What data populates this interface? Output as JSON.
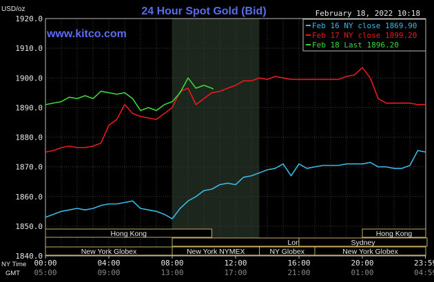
{
  "chart_data": {
    "type": "line",
    "title": "24 Hour Spot Gold (Bid)",
    "timestamp": "February 18, 2022 10:18",
    "watermark": "www.kitco.com",
    "ylabel": "USD/oz",
    "ylim": [
      1840,
      1920
    ],
    "yticks": [
      "1920.0",
      "1910.0",
      "1900.0",
      "1890.0",
      "1880.0",
      "1870.0",
      "1860.0",
      "1850.0",
      "1840.0"
    ],
    "xlim": [
      0,
      24
    ],
    "x_ticks": [
      0,
      4,
      8,
      12,
      16,
      20,
      23.98
    ],
    "x_ticks_ny": [
      "00:00",
      "04:00",
      "08:00",
      "12:00",
      "16:00",
      "20:00",
      "23:59"
    ],
    "x_ticks_gmt": [
      "05:00",
      "09:00",
      "13:00",
      "17:00",
      "21:00",
      "01:00",
      "04:59"
    ],
    "x_row_label_ny": "NY Time",
    "x_row_label_gmt": "GMT",
    "grid": true,
    "legend_position": "top-right",
    "highlight_band": [
      8,
      13.5
    ],
    "sessions": [
      {
        "label": "Hong Kong",
        "row": 0,
        "start": 0,
        "end": 10.5
      },
      {
        "label": "Hong Kong",
        "row": 0,
        "start": 20,
        "end": 24
      },
      {
        "label": "London",
        "row": 1,
        "start": 8,
        "end": 25
      },
      {
        "label": "Sydney",
        "row": 1,
        "start": 16,
        "end": 25
      },
      {
        "label": "New York Globex",
        "row": 2,
        "start": 0,
        "end": 8
      },
      {
        "label": "New York NYMEX",
        "row": 2,
        "start": 8,
        "end": 13.5
      },
      {
        "label": "NY Globex",
        "row": 2,
        "start": 13.5,
        "end": 17
      },
      {
        "label": "New York Globex",
        "row": 2,
        "start": 17,
        "end": 24
      }
    ],
    "series": [
      {
        "name": "Feb 16 NY close 1869.90",
        "color": "#3cb8e8",
        "points": [
          [
            0,
            1853
          ],
          [
            0.5,
            1854
          ],
          [
            1,
            1855
          ],
          [
            1.5,
            1855.5
          ],
          [
            2,
            1856
          ],
          [
            2.5,
            1855.5
          ],
          [
            3,
            1856
          ],
          [
            3.5,
            1857
          ],
          [
            4,
            1857.5
          ],
          [
            4.5,
            1857.5
          ],
          [
            5,
            1858
          ],
          [
            5.5,
            1858.5
          ],
          [
            6,
            1856
          ],
          [
            6.5,
            1855.5
          ],
          [
            7,
            1855
          ],
          [
            7.5,
            1854
          ],
          [
            8,
            1852.5
          ],
          [
            8.5,
            1856
          ],
          [
            9,
            1858.5
          ],
          [
            9.5,
            1860
          ],
          [
            10,
            1862
          ],
          [
            10.5,
            1862.5
          ],
          [
            11,
            1864
          ],
          [
            11.5,
            1864.5
          ],
          [
            12,
            1864
          ],
          [
            12.5,
            1866.5
          ],
          [
            13,
            1867
          ],
          [
            13.5,
            1868
          ],
          [
            14,
            1869
          ],
          [
            14.5,
            1869.5
          ],
          [
            15,
            1871
          ],
          [
            15.5,
            1867
          ],
          [
            16,
            1871
          ],
          [
            16.5,
            1869.5
          ],
          [
            17,
            1870
          ],
          [
            17.5,
            1870.5
          ],
          [
            18,
            1870.5
          ],
          [
            18.5,
            1870.5
          ],
          [
            19,
            1871
          ],
          [
            19.5,
            1871
          ],
          [
            20,
            1871
          ],
          [
            20.5,
            1871.5
          ],
          [
            21,
            1870
          ],
          [
            21.5,
            1870
          ],
          [
            22,
            1869.5
          ],
          [
            22.5,
            1869.5
          ],
          [
            23,
            1870.5
          ],
          [
            23.5,
            1875.5
          ],
          [
            24,
            1875
          ]
        ]
      },
      {
        "name": "Feb 17 NY close 1899.20",
        "color": "#e81c1c",
        "points": [
          [
            0,
            1875
          ],
          [
            0.5,
            1875.5
          ],
          [
            1,
            1876.5
          ],
          [
            1.5,
            1877
          ],
          [
            2,
            1876.5
          ],
          [
            2.5,
            1876.5
          ],
          [
            3,
            1877
          ],
          [
            3.5,
            1878
          ],
          [
            4,
            1884
          ],
          [
            4.5,
            1886
          ],
          [
            5,
            1891
          ],
          [
            5.5,
            1888
          ],
          [
            6,
            1887
          ],
          [
            6.5,
            1886.5
          ],
          [
            7,
            1886
          ],
          [
            7.5,
            1888
          ],
          [
            8,
            1890
          ],
          [
            8.5,
            1895.5
          ],
          [
            9,
            1896.5
          ],
          [
            9.5,
            1891
          ],
          [
            10,
            1893
          ],
          [
            10.5,
            1895
          ],
          [
            11,
            1895.5
          ],
          [
            11.5,
            1896.5
          ],
          [
            12,
            1897.5
          ],
          [
            12.5,
            1899
          ],
          [
            13,
            1899
          ],
          [
            13.5,
            1900
          ],
          [
            14,
            1899.5
          ],
          [
            14.5,
            1900.5
          ],
          [
            15,
            1900
          ],
          [
            15.5,
            1899.5
          ],
          [
            16,
            1899.5
          ],
          [
            16.5,
            1899.5
          ],
          [
            17,
            1899.5
          ],
          [
            17.5,
            1899.5
          ],
          [
            18,
            1899.5
          ],
          [
            18.5,
            1899.5
          ],
          [
            19,
            1900.5
          ],
          [
            19.5,
            1901
          ],
          [
            20,
            1903.5
          ],
          [
            20.5,
            1900
          ],
          [
            21,
            1893
          ],
          [
            21.5,
            1891.5
          ],
          [
            22,
            1891.5
          ],
          [
            22.5,
            1891.5
          ],
          [
            23,
            1891.5
          ],
          [
            23.5,
            1891
          ],
          [
            24,
            1891
          ]
        ]
      },
      {
        "name": "Feb 18 Last 1896.20",
        "color": "#3cd83c",
        "points": [
          [
            0,
            1891
          ],
          [
            0.5,
            1891.5
          ],
          [
            1,
            1892
          ],
          [
            1.5,
            1893.5
          ],
          [
            2,
            1893
          ],
          [
            2.5,
            1894
          ],
          [
            3,
            1893
          ],
          [
            3.5,
            1895.5
          ],
          [
            4,
            1895
          ],
          [
            4.5,
            1894.5
          ],
          [
            5,
            1895
          ],
          [
            5.5,
            1893
          ],
          [
            6,
            1889
          ],
          [
            6.5,
            1890
          ],
          [
            7,
            1889
          ],
          [
            7.5,
            1891
          ],
          [
            8,
            1892
          ],
          [
            8.5,
            1895
          ],
          [
            9,
            1900
          ],
          [
            9.5,
            1896.5
          ],
          [
            10,
            1897.5
          ],
          [
            10.5,
            1896.5
          ],
          [
            10.6,
            1896.2
          ]
        ]
      }
    ]
  }
}
